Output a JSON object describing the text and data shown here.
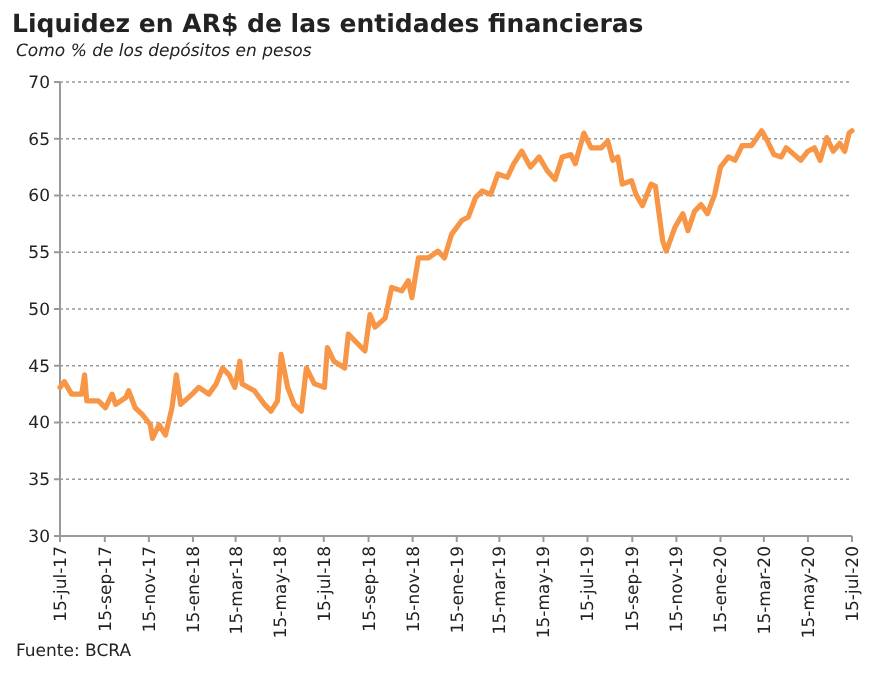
{
  "chart_data": {
    "type": "line",
    "title": "Liquidez en AR$ de las entidades financieras",
    "subtitle": "Como % de los depósitos en pesos",
    "annotations": [
      "Fuente: BCRA"
    ],
    "x": [
      "2017-07-15",
      "2017-07-21",
      "2017-07-31",
      "2017-08-14",
      "2017-08-18",
      "2017-08-21",
      "2017-09-06",
      "2017-09-16",
      "2017-09-25",
      "2017-09-30",
      "2017-10-14",
      "2017-10-18",
      "2017-10-27",
      "2017-11-06",
      "2017-11-17",
      "2017-11-20",
      "2017-11-29",
      "2017-12-08",
      "2017-12-17",
      "2017-12-23",
      "2017-12-29",
      "2018-01-14",
      "2018-01-23",
      "2018-02-06",
      "2018-02-16",
      "2018-02-25",
      "2018-03-06",
      "2018-03-14",
      "2018-03-21",
      "2018-03-24",
      "2018-04-10",
      "2018-04-24",
      "2018-05-03",
      "2018-05-12",
      "2018-05-17",
      "2018-05-26",
      "2018-06-04",
      "2018-06-14",
      "2018-06-21",
      "2018-07-02",
      "2018-07-16",
      "2018-07-20",
      "2018-07-29",
      "2018-08-13",
      "2018-08-18",
      "2018-08-27",
      "2018-09-10",
      "2018-09-17",
      "2018-09-24",
      "2018-10-08",
      "2018-10-17",
      "2018-10-31",
      "2018-11-09",
      "2018-11-14",
      "2018-11-23",
      "2018-12-07",
      "2018-12-20",
      "2018-12-29",
      "2019-01-08",
      "2019-01-22",
      "2019-01-31",
      "2019-02-10",
      "2019-02-19",
      "2019-03-03",
      "2019-03-13",
      "2019-03-26",
      "2019-04-04",
      "2019-04-15",
      "2019-04-27",
      "2019-05-09",
      "2019-05-20",
      "2019-05-31",
      "2019-06-10",
      "2019-06-22",
      "2019-06-28",
      "2019-07-10",
      "2019-07-20",
      "2019-08-03",
      "2019-08-12",
      "2019-08-19",
      "2019-08-26",
      "2019-09-01",
      "2019-09-14",
      "2019-09-20",
      "2019-09-29",
      "2019-10-11",
      "2019-10-17",
      "2019-10-27",
      "2019-11-01",
      "2019-11-13",
      "2019-11-24",
      "2019-12-01",
      "2019-12-10",
      "2019-12-19",
      "2019-12-28",
      "2020-01-07",
      "2020-01-15",
      "2020-01-26",
      "2020-02-04",
      "2020-02-14",
      "2020-02-27",
      "2020-03-12",
      "2020-03-20",
      "2020-03-29",
      "2020-04-08",
      "2020-04-15",
      "2020-04-26",
      "2020-05-05",
      "2020-05-15",
      "2020-05-24",
      "2020-06-01",
      "2020-06-10",
      "2020-06-19",
      "2020-06-28",
      "2020-07-05",
      "2020-07-11",
      "2020-07-15"
    ],
    "series": [
      {
        "color": "#f79646",
        "values": [
          43.1,
          43.6,
          42.5,
          42.5,
          44.2,
          41.9,
          41.9,
          41.3,
          42.5,
          41.6,
          42.2,
          42.8,
          41.3,
          40.7,
          39.8,
          38.6,
          39.8,
          38.9,
          41.3,
          44.2,
          41.6,
          42.5,
          43.1,
          42.5,
          43.4,
          44.8,
          44.2,
          43.1,
          45.4,
          43.4,
          42.8,
          41.6,
          41.0,
          41.9,
          46.0,
          43.1,
          41.6,
          41.0,
          44.8,
          43.4,
          43.1,
          46.6,
          45.4,
          44.8,
          47.8,
          47.2,
          46.3,
          49.5,
          48.4,
          49.2,
          51.9,
          51.6,
          52.5,
          51.0,
          54.5,
          54.5,
          55.1,
          54.5,
          56.6,
          57.8,
          58.1,
          59.8,
          60.4,
          60.1,
          61.9,
          61.6,
          62.8,
          63.9,
          62.5,
          63.4,
          62.2,
          61.4,
          63.4,
          63.6,
          62.8,
          65.5,
          64.2,
          64.2,
          64.8,
          63.1,
          63.4,
          61.0,
          61.3,
          60.1,
          59.1,
          61.0,
          60.8,
          56.0,
          55.1,
          57.2,
          58.4,
          56.9,
          58.6,
          59.2,
          58.4,
          60.1,
          62.5,
          63.4,
          63.1,
          64.4,
          64.4,
          65.7,
          64.8,
          63.6,
          63.4,
          64.2,
          63.6,
          63.1,
          63.9,
          64.2,
          63.1,
          65.1,
          63.9,
          64.6,
          63.9,
          65.5,
          65.7
        ]
      }
    ],
    "xlim": [
      "2017-07-15",
      "2020-07-15"
    ],
    "xticks": [
      {
        "value": "2017-07-15",
        "label": "15-jul-17"
      },
      {
        "value": "2017-09-15",
        "label": "15-sep-17"
      },
      {
        "value": "2017-11-15",
        "label": "15-nov-17"
      },
      {
        "value": "2018-01-15",
        "label": "15-ene-18"
      },
      {
        "value": "2018-03-15",
        "label": "15-mar-18"
      },
      {
        "value": "2018-05-15",
        "label": "15-may-18"
      },
      {
        "value": "2018-07-15",
        "label": "15-jul-18"
      },
      {
        "value": "2018-09-15",
        "label": "15-sep-18"
      },
      {
        "value": "2018-11-15",
        "label": "15-nov-18"
      },
      {
        "value": "2019-01-15",
        "label": "15-ene-19"
      },
      {
        "value": "2019-03-15",
        "label": "15-mar-19"
      },
      {
        "value": "2019-05-15",
        "label": "15-may-19"
      },
      {
        "value": "2019-07-15",
        "label": "15-jul-19"
      },
      {
        "value": "2019-09-15",
        "label": "15-sep-19"
      },
      {
        "value": "2019-11-15",
        "label": "15-nov-19"
      },
      {
        "value": "2020-01-15",
        "label": "15-ene-20"
      },
      {
        "value": "2020-03-15",
        "label": "15-mar-20"
      },
      {
        "value": "2020-05-15",
        "label": "15-may-20"
      },
      {
        "value": "2020-07-15",
        "label": "15-jul-20"
      }
    ],
    "ylim": [
      30,
      70
    ],
    "yticks": [
      30,
      35,
      40,
      45,
      50,
      55,
      60,
      65,
      70
    ],
    "grid": "y",
    "marker": "none",
    "line_style": "solid"
  }
}
